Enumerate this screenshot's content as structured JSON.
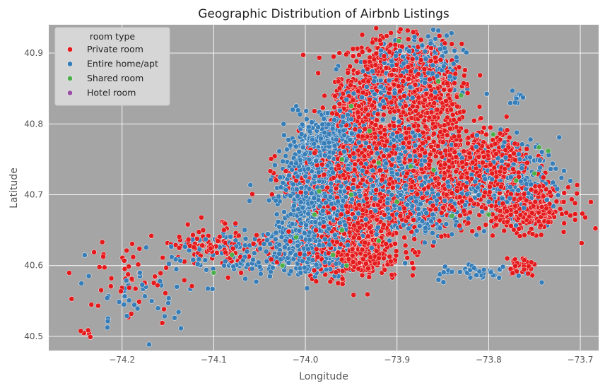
{
  "chart_data": {
    "type": "scatter",
    "title": "Geographic Distribution of Airbnb Listings",
    "xlabel": "Longitude",
    "ylabel": "Latitude",
    "xlim": [
      -74.28,
      -73.68
    ],
    "ylim": [
      40.48,
      40.94
    ],
    "x_ticks": [
      {
        "value": -74.2,
        "label": "−74.2"
      },
      {
        "value": -74.1,
        "label": "−74.1"
      },
      {
        "value": -74.0,
        "label": "−74.0"
      },
      {
        "value": -73.9,
        "label": "−73.9"
      },
      {
        "value": -73.8,
        "label": "−73.8"
      },
      {
        "value": -73.7,
        "label": "−73.7"
      }
    ],
    "y_ticks": [
      {
        "value": 40.5,
        "label": "40.5"
      },
      {
        "value": 40.6,
        "label": "40.6"
      },
      {
        "value": 40.7,
        "label": "40.7"
      },
      {
        "value": 40.8,
        "label": "40.8"
      },
      {
        "value": 40.9,
        "label": "40.9"
      }
    ],
    "grid": true,
    "legend": {
      "title": "room type",
      "placement": "top-left",
      "entries": [
        "Private room",
        "Entire home/apt",
        "Shared room",
        "Hotel room"
      ]
    },
    "series": [
      {
        "name": "Private room",
        "color": "#e41a1c",
        "regions": [
          {
            "lon": -73.905,
            "lat": 40.865,
            "slon": 0.035,
            "slat": 0.035,
            "n": 520
          },
          {
            "lon": -73.865,
            "lat": 40.84,
            "slon": 0.022,
            "slat": 0.045,
            "n": 360
          },
          {
            "lon": -73.945,
            "lat": 40.815,
            "slon": 0.015,
            "slat": 0.025,
            "n": 260
          },
          {
            "lon": -73.935,
            "lat": 40.765,
            "slon": 0.03,
            "slat": 0.025,
            "n": 300
          },
          {
            "lon": -73.965,
            "lat": 40.725,
            "slon": 0.035,
            "slat": 0.02,
            "n": 320
          },
          {
            "lon": -73.94,
            "lat": 40.68,
            "slon": 0.035,
            "slat": 0.03,
            "n": 450
          },
          {
            "lon": -73.95,
            "lat": 40.62,
            "slon": 0.035,
            "slat": 0.025,
            "n": 380
          },
          {
            "lon": -73.8,
            "lat": 40.745,
            "slon": 0.03,
            "slat": 0.03,
            "n": 360
          },
          {
            "lon": -73.76,
            "lat": 40.68,
            "slon": 0.03,
            "slat": 0.02,
            "n": 320
          },
          {
            "lon": -73.86,
            "lat": 40.7,
            "slon": 0.035,
            "slat": 0.03,
            "n": 320
          },
          {
            "lon": -73.875,
            "lat": 40.76,
            "slon": 0.03,
            "slat": 0.02,
            "n": 200
          },
          {
            "lon": -74.09,
            "lat": 40.63,
            "slon": 0.035,
            "slat": 0.02,
            "n": 110
          },
          {
            "lon": -74.19,
            "lat": 40.58,
            "slon": 0.035,
            "slat": 0.04,
            "n": 50
          },
          {
            "lon": -73.765,
            "lat": 40.6,
            "slon": 0.01,
            "slat": 0.008,
            "n": 40
          },
          {
            "lon": -74.24,
            "lat": 40.506,
            "slon": 0.007,
            "slat": 0.004,
            "n": 5
          }
        ]
      },
      {
        "name": "Entire home/apt",
        "color": "#377eb8",
        "regions": [
          {
            "lon": -73.99,
            "lat": 40.74,
            "slon": 0.02,
            "slat": 0.035,
            "n": 520
          },
          {
            "lon": -73.96,
            "lat": 40.785,
            "slon": 0.018,
            "slat": 0.02,
            "n": 300
          },
          {
            "lon": -73.975,
            "lat": 40.685,
            "slon": 0.035,
            "slat": 0.03,
            "n": 450
          },
          {
            "lon": -74.0,
            "lat": 40.625,
            "slon": 0.035,
            "slat": 0.025,
            "n": 320
          },
          {
            "lon": -73.93,
            "lat": 40.72,
            "slon": 0.03,
            "slat": 0.025,
            "n": 280
          },
          {
            "lon": -73.895,
            "lat": 40.765,
            "slon": 0.025,
            "slat": 0.02,
            "n": 180
          },
          {
            "lon": -73.78,
            "lat": 40.72,
            "slon": 0.035,
            "slat": 0.035,
            "n": 250
          },
          {
            "lon": -73.87,
            "lat": 40.685,
            "slon": 0.03,
            "slat": 0.03,
            "n": 220
          },
          {
            "lon": -73.875,
            "lat": 40.875,
            "slon": 0.03,
            "slat": 0.03,
            "n": 220
          },
          {
            "lon": -73.925,
            "lat": 40.845,
            "slon": 0.02,
            "slat": 0.025,
            "n": 140
          },
          {
            "lon": -74.09,
            "lat": 40.615,
            "slon": 0.04,
            "slat": 0.025,
            "n": 80
          },
          {
            "lon": -74.18,
            "lat": 40.56,
            "slon": 0.04,
            "slat": 0.035,
            "n": 40
          },
          {
            "lon": -73.81,
            "lat": 40.59,
            "slon": 0.03,
            "slat": 0.008,
            "n": 45
          },
          {
            "lon": -73.77,
            "lat": 40.84,
            "slon": 0.006,
            "slat": 0.008,
            "n": 10
          }
        ]
      },
      {
        "name": "Shared room",
        "color": "#4daf4a",
        "points": [
          [
            -73.898,
            40.917
          ],
          [
            -73.855,
            40.86
          ],
          [
            -73.83,
            40.84
          ],
          [
            -73.95,
            40.825
          ],
          [
            -73.93,
            40.79
          ],
          [
            -73.795,
            40.785
          ],
          [
            -73.745,
            40.767
          ],
          [
            -73.735,
            40.762
          ],
          [
            -73.96,
            40.75
          ],
          [
            -73.92,
            40.745
          ],
          [
            -73.885,
            40.74
          ],
          [
            -73.86,
            40.735
          ],
          [
            -73.77,
            40.72
          ],
          [
            -73.75,
            40.73
          ],
          [
            -73.985,
            40.705
          ],
          [
            -73.95,
            40.7
          ],
          [
            -73.9,
            40.69
          ],
          [
            -73.84,
            40.67
          ],
          [
            -73.8,
            40.672
          ],
          [
            -73.99,
            40.672
          ],
          [
            -73.96,
            40.65
          ],
          [
            -74.01,
            40.64
          ],
          [
            -73.92,
            40.635
          ],
          [
            -73.97,
            40.615
          ],
          [
            -74.025,
            40.6
          ],
          [
            -74.1,
            40.59
          ],
          [
            -74.08,
            40.615
          ],
          [
            -73.955,
            40.6
          ]
        ]
      },
      {
        "name": "Hotel room",
        "color": "#984ea3",
        "points": []
      }
    ]
  }
}
